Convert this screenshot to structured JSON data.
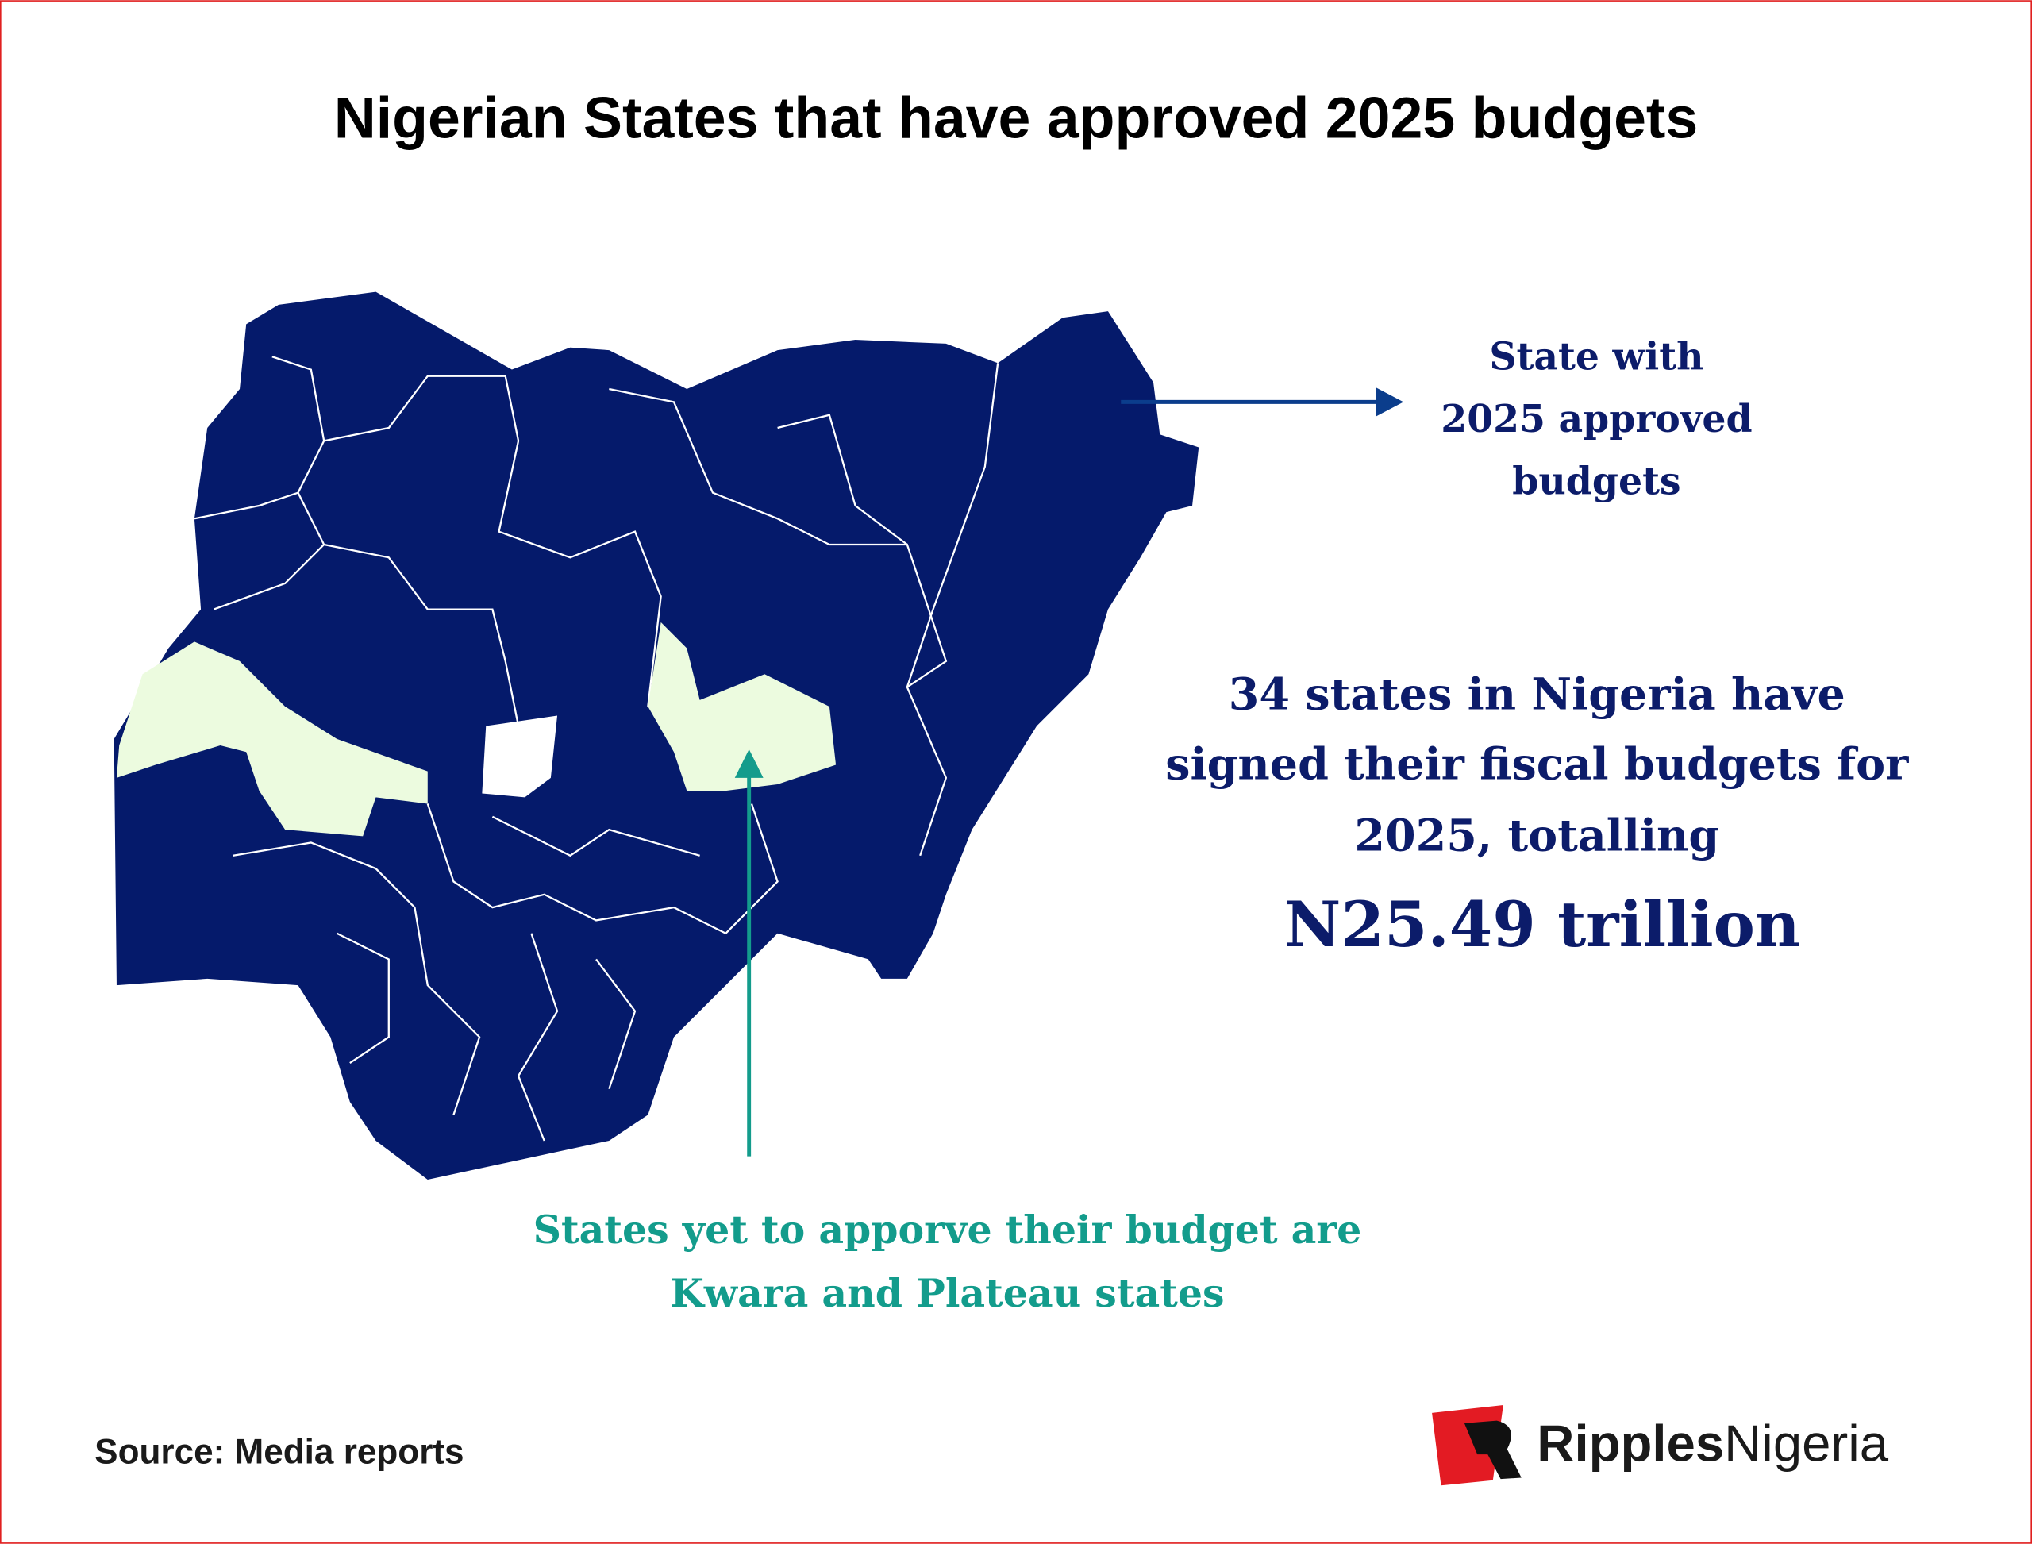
{
  "title": "Nigerian States that have approved 2025 budgets",
  "legend": {
    "lines": [
      "State with",
      "2025 approved",
      "budgets"
    ]
  },
  "summary": {
    "lines": [
      "34 states in Nigeria have",
      "signed their fiscal budgets for",
      "2025, totalling"
    ],
    "amount": "N25.49 trillion"
  },
  "note": {
    "lines": [
      "States yet to apporve their budget are",
      "Kwara and Plateau states"
    ]
  },
  "source": "Source: Media reports",
  "logo": {
    "bold": "Ripples",
    "regular": "Nigeria"
  }
}
